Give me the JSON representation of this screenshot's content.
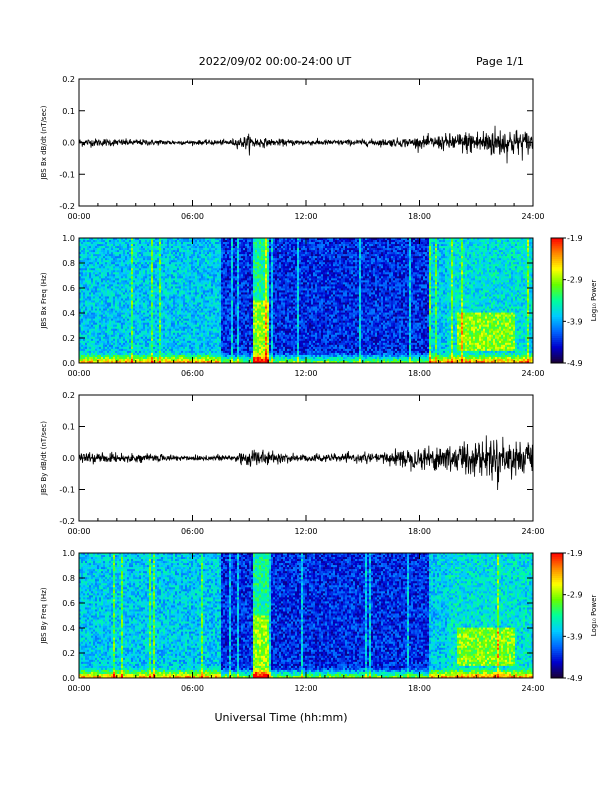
{
  "header": {
    "title": "2022/09/02  00:00-24:00 UT",
    "page": "Page 1/1"
  },
  "x_axis_title": "Universal Time (hh:mm)",
  "chart_data": [
    {
      "type": "line",
      "ylabel": "JBS Bx dB/dt (nT/sec)",
      "ylim": [
        -0.2,
        0.2
      ],
      "yticks": [
        "0.2",
        "0.1",
        "0.0",
        "-0.1",
        "-0.2"
      ],
      "yticks_values": [
        0.2,
        0.1,
        0.0,
        -0.1,
        -0.2
      ],
      "xticks": [
        "00:00",
        "06:00",
        "12:00",
        "18:00",
        "24:00"
      ],
      "xlim_hours": [
        0,
        24
      ],
      "envelope": {
        "x_hours": [
          0,
          2,
          4,
          6,
          8,
          9,
          10,
          12,
          14,
          16,
          18,
          19,
          20,
          21,
          22,
          23,
          24
        ],
        "amplitude": [
          0.012,
          0.01,
          0.008,
          0.006,
          0.008,
          0.022,
          0.01,
          0.008,
          0.008,
          0.01,
          0.015,
          0.02,
          0.028,
          0.035,
          0.045,
          0.04,
          0.03
        ]
      }
    },
    {
      "type": "heatmap",
      "ylabel": "JBS Bx Freq (Hz)",
      "ylim": [
        0.0,
        1.0
      ],
      "yticks": [
        "1.0",
        "0.8",
        "0.6",
        "0.4",
        "0.2",
        "0.0"
      ],
      "yticks_values": [
        1.0,
        0.8,
        0.6,
        0.4,
        0.2,
        0.0
      ],
      "xticks": [
        "00:00",
        "06:00",
        "12:00",
        "18:00",
        "24:00"
      ],
      "xlim_hours": [
        0,
        24
      ],
      "colorbar": {
        "label": "Log₁₀ Power",
        "ticks": [
          "-1.9",
          "-2.9",
          "-3.9",
          "-4.9"
        ],
        "tick_values": [
          -1.9,
          -2.9,
          -3.9,
          -4.9
        ],
        "range": [
          -4.9,
          -1.9
        ],
        "colors": [
          "#1a0033",
          "#0000cc",
          "#0066ff",
          "#00ccff",
          "#00ff99",
          "#66ff00",
          "#ffff00",
          "#ff8800",
          "#ff0000"
        ]
      }
    },
    {
      "type": "line",
      "ylabel": "JBS By dB/dt (nT/sec)",
      "ylim": [
        -0.2,
        0.2
      ],
      "yticks": [
        "0.2",
        "0.1",
        "0.0",
        "-0.1",
        "-0.2"
      ],
      "yticks_values": [
        0.2,
        0.1,
        0.0,
        -0.1,
        -0.2
      ],
      "xticks": [
        "00:00",
        "06:00",
        "12:00",
        "18:00",
        "24:00"
      ],
      "xlim_hours": [
        0,
        24
      ],
      "envelope": {
        "x_hours": [
          0,
          2,
          4,
          6,
          8,
          9,
          10,
          12,
          14,
          16,
          17,
          18,
          19,
          20,
          21,
          22,
          23,
          24
        ],
        "amplitude": [
          0.015,
          0.012,
          0.01,
          0.008,
          0.01,
          0.03,
          0.015,
          0.012,
          0.01,
          0.015,
          0.025,
          0.03,
          0.04,
          0.045,
          0.05,
          0.055,
          0.05,
          0.04
        ]
      }
    },
    {
      "type": "heatmap",
      "ylabel": "JBS By Freq (Hz)",
      "ylim": [
        0.0,
        1.0
      ],
      "yticks": [
        "1.0",
        "0.8",
        "0.6",
        "0.4",
        "0.2",
        "0.0"
      ],
      "yticks_values": [
        1.0,
        0.8,
        0.6,
        0.4,
        0.2,
        0.0
      ],
      "xticks": [
        "00:00",
        "06:00",
        "12:00",
        "18:00",
        "24:00"
      ],
      "xlim_hours": [
        0,
        24
      ],
      "colorbar": {
        "label": "Log₁₀ Power",
        "ticks": [
          "-1.9",
          "-2.9",
          "-3.9",
          "-4.9"
        ],
        "tick_values": [
          -1.9,
          -2.9,
          -3.9,
          -4.9
        ],
        "range": [
          -4.9,
          -1.9
        ],
        "colors": [
          "#1a0033",
          "#0000cc",
          "#0066ff",
          "#00ccff",
          "#00ff99",
          "#66ff00",
          "#ffff00",
          "#ff8800",
          "#ff0000"
        ]
      }
    }
  ]
}
